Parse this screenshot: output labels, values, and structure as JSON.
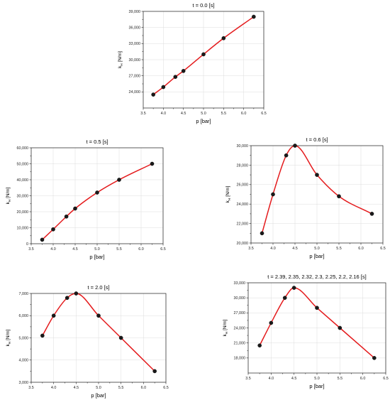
{
  "chart_data": [
    {
      "type": "line",
      "title": "t = 0.0 [s]",
      "xlabel": "p  [bar]",
      "ylabel": "k",
      "ylabel_sub": "H",
      "ylabel_unit": "[N/m]",
      "xlim": [
        3.5,
        6.5
      ],
      "ylim": [
        21000,
        39000
      ],
      "xticks": [
        "3.5",
        "4.0",
        "4.5",
        "5.0",
        "5.5",
        "6.0",
        "6.5"
      ],
      "yticks": [
        "24,000",
        "27,000",
        "30,000",
        "33,000",
        "36,000",
        "39,000"
      ],
      "grid": true,
      "color": "#e41a1c",
      "x": [
        3.75,
        4.0,
        4.3,
        4.5,
        5.0,
        5.5,
        6.25
      ],
      "y": [
        23500,
        24900,
        26800,
        27900,
        31000,
        34000,
        38000
      ]
    },
    {
      "type": "line",
      "title": "t = 0.5 [s]",
      "xlabel": "p  [bar]",
      "ylabel": "k",
      "ylabel_sub": "H",
      "ylabel_unit": "[N/m]",
      "xlim": [
        3.5,
        6.5
      ],
      "ylim": [
        0,
        60000
      ],
      "xticks": [
        "3.5",
        "4.0",
        "4.5",
        "5.0",
        "5.5",
        "6.0",
        "6.5"
      ],
      "yticks": [
        "0",
        "10,000",
        "20,000",
        "30,000",
        "40,000",
        "50,000",
        "60,000"
      ],
      "grid": true,
      "color": "#e41a1c",
      "x": [
        3.75,
        4.0,
        4.3,
        4.5,
        5.0,
        5.5,
        6.25
      ],
      "y": [
        2500,
        9000,
        17000,
        22000,
        32000,
        40000,
        50000
      ]
    },
    {
      "type": "line",
      "title": "t = 0.6  [s]",
      "xlabel": "p  [bar]",
      "ylabel": "k",
      "ylabel_sub": "H",
      "ylabel_unit": "[N/m]",
      "xlim": [
        3.5,
        6.5
      ],
      "ylim": [
        20000,
        30000
      ],
      "xticks": [
        "3.5",
        "4.0",
        "4.5",
        "5.0",
        "5.5",
        "6.0",
        "6.5"
      ],
      "yticks": [
        "20,000",
        "22,000",
        "24,000",
        "26,000",
        "28,000",
        "30,000"
      ],
      "grid": true,
      "color": "#e41a1c",
      "x": [
        3.75,
        4.0,
        4.3,
        4.5,
        5.0,
        5.5,
        6.25
      ],
      "y": [
        21000,
        25000,
        29000,
        30000,
        27000,
        24800,
        23000
      ]
    },
    {
      "type": "line",
      "title": "t = 2.0  [s]",
      "xlabel": "p  [bar]",
      "ylabel": "k",
      "ylabel_sub": "H",
      "ylabel_unit": "[N/m]",
      "xlim": [
        3.5,
        6.5
      ],
      "ylim": [
        3000,
        7000
      ],
      "xticks": [
        "3.5",
        "4.0",
        "4.5",
        "5.0",
        "5.5",
        "6.0",
        "6.5"
      ],
      "yticks": [
        "3,000",
        "4,000",
        "5,000",
        "6,000",
        "7,000"
      ],
      "grid": true,
      "color": "#e41a1c",
      "x": [
        3.75,
        4.0,
        4.3,
        4.5,
        5.0,
        5.5,
        6.25
      ],
      "y": [
        5100,
        6000,
        6800,
        7000,
        6000,
        5000,
        3500
      ]
    },
    {
      "type": "line",
      "title": "t = 2.39, 2.35, 2.32, 2.3, 2.25, 2.2, 2.16  [s]",
      "xlabel": "p  [bar]",
      "ylabel": "k",
      "ylabel_sub": "H",
      "ylabel_unit": "[N/m]",
      "xlim": [
        3.5,
        6.5
      ],
      "ylim": [
        15000,
        33000
      ],
      "xticks": [
        "3.5",
        "4.0",
        "4.5",
        "5.0",
        "5.5",
        "6.0",
        "6.5"
      ],
      "yticks": [
        "18,000",
        "21,000",
        "24,000",
        "27,000",
        "30,000",
        "33,000"
      ],
      "grid": true,
      "color": "#e41a1c",
      "x": [
        3.75,
        4.0,
        4.3,
        4.5,
        5.0,
        5.5,
        6.25
      ],
      "y": [
        20500,
        25000,
        30000,
        32000,
        28000,
        24000,
        18000
      ]
    }
  ]
}
